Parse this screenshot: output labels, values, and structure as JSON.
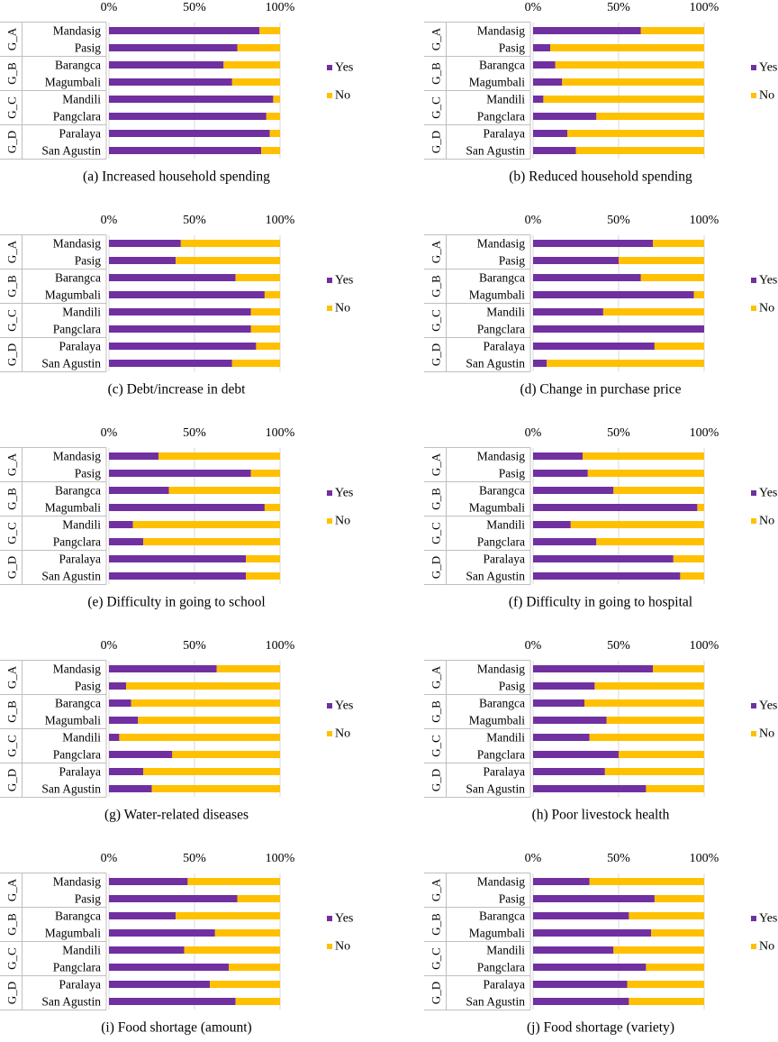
{
  "colors": {
    "yes": "#7030A0",
    "no": "#FFC000",
    "grid": "#D9D9D9",
    "axis": "#BFBFBF"
  },
  "groups": [
    "G_A",
    "G_B",
    "G_C",
    "G_D"
  ],
  "chart_data": [
    {
      "type": "bar",
      "orientation": "horizontal",
      "stacked": "percent",
      "title": "(a) Increased household spending",
      "categories": [
        "Mandasig",
        "Pasig",
        "Barangca",
        "Magumbali",
        "Mandili",
        "Pangclara",
        "Paralaya",
        "San Agustin"
      ],
      "x_ticks": [
        "0%",
        "50%",
        "100%"
      ],
      "xlim": [
        0,
        100
      ],
      "legend_position": "right",
      "grid": true,
      "series": [
        {
          "name": "Yes",
          "values": [
            88,
            75,
            67,
            72,
            96,
            92,
            94,
            89
          ]
        },
        {
          "name": "No",
          "values": [
            12,
            25,
            33,
            28,
            4,
            8,
            6,
            11
          ]
        }
      ]
    },
    {
      "type": "bar",
      "orientation": "horizontal",
      "stacked": "percent",
      "title": "(b) Reduced household spending",
      "categories": [
        "Mandasig",
        "Pasig",
        "Barangca",
        "Magumbali",
        "Mandili",
        "Pangclara",
        "Paralaya",
        "San Agustin"
      ],
      "x_ticks": [
        "0%",
        "50%",
        "100%"
      ],
      "xlim": [
        0,
        100
      ],
      "legend_position": "right",
      "grid": true,
      "series": [
        {
          "name": "Yes",
          "values": [
            63,
            10,
            13,
            17,
            6,
            37,
            20,
            25
          ]
        },
        {
          "name": "No",
          "values": [
            37,
            90,
            87,
            83,
            94,
            63,
            80,
            75
          ]
        }
      ]
    },
    {
      "type": "bar",
      "orientation": "horizontal",
      "stacked": "percent",
      "title": "(c) Debt/increase in debt",
      "categories": [
        "Mandasig",
        "Pasig",
        "Barangca",
        "Magumbali",
        "Mandili",
        "Pangclara",
        "Paralaya",
        "San Agustin"
      ],
      "x_ticks": [
        "0%",
        "50%",
        "100%"
      ],
      "xlim": [
        0,
        100
      ],
      "legend_position": "right",
      "grid": true,
      "series": [
        {
          "name": "Yes",
          "values": [
            42,
            39,
            74,
            91,
            83,
            83,
            86,
            72
          ]
        },
        {
          "name": "No",
          "values": [
            58,
            61,
            26,
            9,
            17,
            17,
            14,
            28
          ]
        }
      ]
    },
    {
      "type": "bar",
      "orientation": "horizontal",
      "stacked": "percent",
      "title": "(d) Change in purchase price",
      "categories": [
        "Mandasig",
        "Pasig",
        "Barangca",
        "Magumbali",
        "Mandili",
        "Pangclara",
        "Paralaya",
        "San Agustin"
      ],
      "x_ticks": [
        "0%",
        "50%",
        "100%"
      ],
      "xlim": [
        0,
        100
      ],
      "legend_position": "right",
      "grid": true,
      "series": [
        {
          "name": "Yes",
          "values": [
            70,
            50,
            63,
            94,
            41,
            100,
            71,
            8
          ]
        },
        {
          "name": "No",
          "values": [
            30,
            50,
            37,
            6,
            59,
            0,
            29,
            92
          ]
        }
      ]
    },
    {
      "type": "bar",
      "orientation": "horizontal",
      "stacked": "percent",
      "title": "(e) Difficulty in going to school",
      "categories": [
        "Mandasig",
        "Pasig",
        "Barangca",
        "Magumbali",
        "Mandili",
        "Pangclara",
        "Paralaya",
        "San Agustin"
      ],
      "x_ticks": [
        "0%",
        "50%",
        "100%"
      ],
      "xlim": [
        0,
        100
      ],
      "legend_position": "right",
      "grid": true,
      "series": [
        {
          "name": "Yes",
          "values": [
            29,
            83,
            35,
            91,
            14,
            20,
            80,
            80
          ]
        },
        {
          "name": "No",
          "values": [
            71,
            17,
            65,
            9,
            86,
            80,
            20,
            20
          ]
        }
      ]
    },
    {
      "type": "bar",
      "orientation": "horizontal",
      "stacked": "percent",
      "title": "(f) Difficulty in going to hospital",
      "categories": [
        "Mandasig",
        "Pasig",
        "Barangca",
        "Magumbali",
        "Mandili",
        "Pangclara",
        "Paralaya",
        "San Agustin"
      ],
      "x_ticks": [
        "0%",
        "50%",
        "100%"
      ],
      "xlim": [
        0,
        100
      ],
      "legend_position": "right",
      "grid": true,
      "series": [
        {
          "name": "Yes",
          "values": [
            29,
            32,
            47,
            96,
            22,
            37,
            82,
            86
          ]
        },
        {
          "name": "No",
          "values": [
            71,
            68,
            53,
            4,
            78,
            63,
            18,
            14
          ]
        }
      ]
    },
    {
      "type": "bar",
      "orientation": "horizontal",
      "stacked": "percent",
      "title": "(g) Water-related diseases",
      "categories": [
        "Mandasig",
        "Pasig",
        "Barangca",
        "Magumbali",
        "Mandili",
        "Pangclara",
        "Paralaya",
        "San Agustin"
      ],
      "x_ticks": [
        "0%",
        "50%",
        "100%"
      ],
      "xlim": [
        0,
        100
      ],
      "legend_position": "right",
      "grid": true,
      "series": [
        {
          "name": "Yes",
          "values": [
            63,
            10,
            13,
            17,
            6,
            37,
            20,
            25
          ]
        },
        {
          "name": "No",
          "values": [
            37,
            90,
            87,
            83,
            94,
            63,
            80,
            75
          ]
        }
      ]
    },
    {
      "type": "bar",
      "orientation": "horizontal",
      "stacked": "percent",
      "title": "(h) Poor livestock health",
      "categories": [
        "Mandasig",
        "Pasig",
        "Barangca",
        "Magumbali",
        "Mandili",
        "Pangclara",
        "Paralaya",
        "San Agustin"
      ],
      "x_ticks": [
        "0%",
        "50%",
        "100%"
      ],
      "xlim": [
        0,
        100
      ],
      "legend_position": "right",
      "grid": true,
      "series": [
        {
          "name": "Yes",
          "values": [
            70,
            36,
            30,
            43,
            33,
            50,
            42,
            66
          ]
        },
        {
          "name": "No",
          "values": [
            30,
            64,
            70,
            57,
            67,
            50,
            58,
            34
          ]
        }
      ]
    },
    {
      "type": "bar",
      "orientation": "horizontal",
      "stacked": "percent",
      "title": "(i) Food shortage (amount)",
      "categories": [
        "Mandasig",
        "Pasig",
        "Barangca",
        "Magumbali",
        "Mandili",
        "Pangclara",
        "Paralaya",
        "San Agustin"
      ],
      "x_ticks": [
        "0%",
        "50%",
        "100%"
      ],
      "xlim": [
        0,
        100
      ],
      "legend_position": "right",
      "grid": true,
      "series": [
        {
          "name": "Yes",
          "values": [
            46,
            75,
            39,
            62,
            44,
            70,
            59,
            74
          ]
        },
        {
          "name": "No",
          "values": [
            54,
            25,
            61,
            38,
            56,
            30,
            41,
            26
          ]
        }
      ]
    },
    {
      "type": "bar",
      "orientation": "horizontal",
      "stacked": "percent",
      "title": "(j) Food shortage (variety)",
      "categories": [
        "Mandasig",
        "Pasig",
        "Barangca",
        "Magumbali",
        "Mandili",
        "Pangclara",
        "Paralaya",
        "San Agustin"
      ],
      "x_ticks": [
        "0%",
        "50%",
        "100%"
      ],
      "xlim": [
        0,
        100
      ],
      "legend_position": "right",
      "grid": true,
      "series": [
        {
          "name": "Yes",
          "values": [
            33,
            71,
            56,
            69,
            47,
            66,
            55,
            56
          ]
        },
        {
          "name": "No",
          "values": [
            67,
            29,
            44,
            31,
            53,
            34,
            45,
            44
          ]
        }
      ]
    }
  ]
}
